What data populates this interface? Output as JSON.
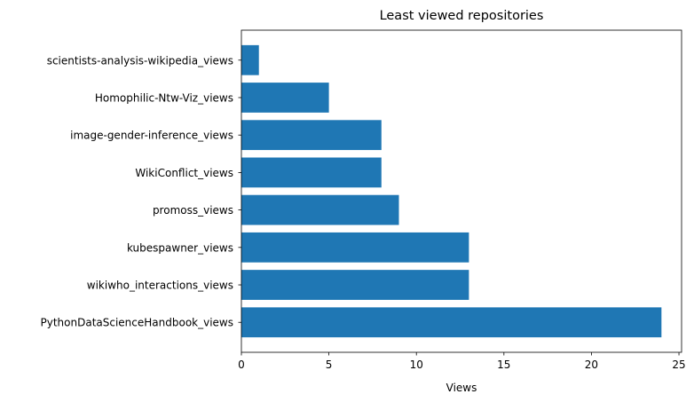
{
  "chart_data": {
    "type": "bar",
    "orientation": "horizontal",
    "title": "Least viewed repositories",
    "xlabel": "Views",
    "ylabel": "",
    "categories": [
      "PythonDataScienceHandbook_views",
      "wikiwho_interactions_views",
      "kubespawner_views",
      "promoss_views",
      "WikiConflict_views",
      "image-gender-inference_views",
      "Homophilic-Ntw-Viz_views",
      "scientists-analysis-wikipedia_views"
    ],
    "values": [
      24,
      13,
      13,
      9,
      8,
      8,
      5,
      1
    ],
    "xlim": [
      0,
      25.15
    ],
    "xticks": [
      0,
      5,
      10,
      15,
      20,
      25
    ],
    "grid": false,
    "bar_color": "#1f77b4"
  }
}
